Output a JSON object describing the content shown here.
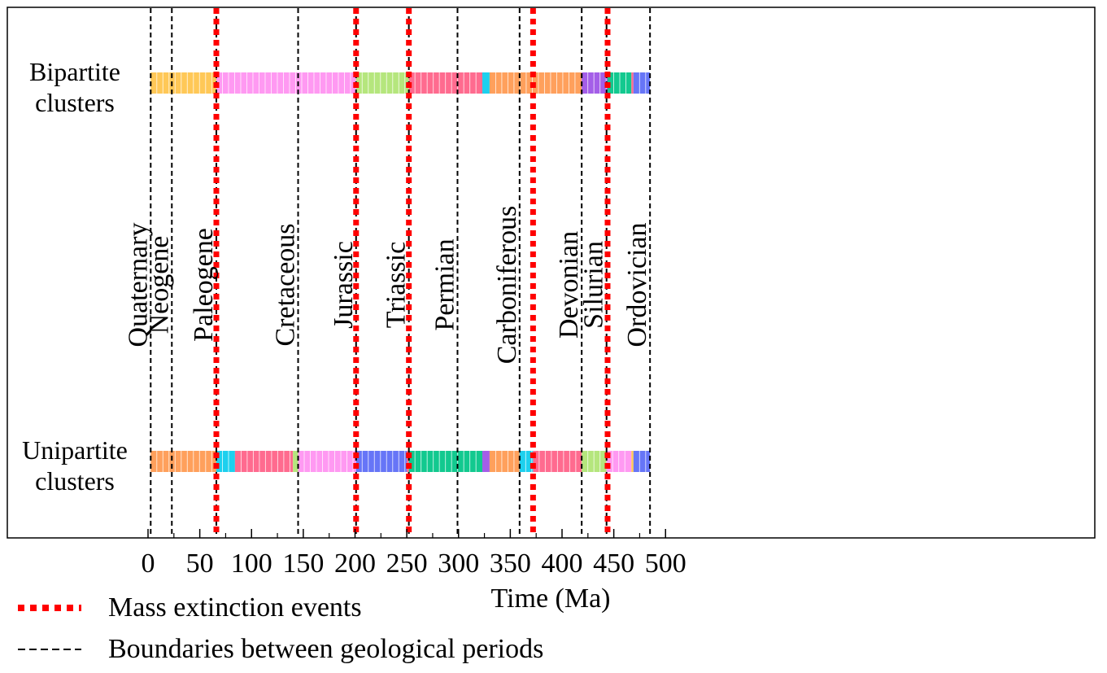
{
  "chart_data": {
    "type": "timeline",
    "xlabel": "Time (Ma)",
    "xlim": [
      0,
      500
    ],
    "xticks": [
      0,
      50,
      100,
      150,
      200,
      250,
      300,
      350,
      400,
      450,
      500
    ],
    "grid": false,
    "legend_position": "bottom-left",
    "rows": [
      {
        "label_line1": "Bipartite",
        "label_line2": "clusters",
        "segments": [
          {
            "start": 2.58,
            "end": 66,
            "color": "#FFC857"
          },
          {
            "start": 66,
            "end": 201,
            "color": "#FF99F2"
          },
          {
            "start": 201,
            "end": 252,
            "color": "#B5E67D"
          },
          {
            "start": 252,
            "end": 323,
            "color": "#FF6B8F"
          },
          {
            "start": 323,
            "end": 330,
            "color": "#1DD0EE"
          },
          {
            "start": 330,
            "end": 419,
            "color": "#FFA05C"
          },
          {
            "start": 419,
            "end": 444,
            "color": "#A45EE8"
          },
          {
            "start": 444,
            "end": 467,
            "color": "#12C98F"
          },
          {
            "start": 467,
            "end": 469,
            "color": "#FF6B8F"
          },
          {
            "start": 469,
            "end": 485,
            "color": "#6675F7"
          }
        ]
      },
      {
        "label_line1": "Unipartite",
        "label_line2": "clusters",
        "segments": [
          {
            "start": 2.58,
            "end": 66,
            "color": "#FFA05C"
          },
          {
            "start": 66,
            "end": 84,
            "color": "#1DD0EE"
          },
          {
            "start": 84,
            "end": 140,
            "color": "#FF6B8F"
          },
          {
            "start": 140,
            "end": 145,
            "color": "#B5E67D"
          },
          {
            "start": 145,
            "end": 201,
            "color": "#FF99F2"
          },
          {
            "start": 201,
            "end": 250,
            "color": "#6675F7"
          },
          {
            "start": 250,
            "end": 252,
            "color": "#FF6B8F"
          },
          {
            "start": 252,
            "end": 323,
            "color": "#12C98F"
          },
          {
            "start": 323,
            "end": 330,
            "color": "#A45EE8"
          },
          {
            "start": 330,
            "end": 359,
            "color": "#FFA05C"
          },
          {
            "start": 359,
            "end": 372,
            "color": "#1DD0EE"
          },
          {
            "start": 372,
            "end": 419,
            "color": "#FF6B8F"
          },
          {
            "start": 419,
            "end": 443,
            "color": "#B5E67D"
          },
          {
            "start": 443,
            "end": 467,
            "color": "#FF99F2"
          },
          {
            "start": 467,
            "end": 469,
            "color": "#FFC857"
          },
          {
            "start": 469,
            "end": 485,
            "color": "#6675F7"
          }
        ]
      }
    ],
    "period_boundaries": [
      2.58,
      23,
      66,
      145,
      201,
      252,
      299,
      359,
      419,
      443,
      485
    ],
    "mass_extinctions": [
      66,
      201,
      252,
      372,
      444
    ],
    "periods": [
      {
        "name": "Quaternary",
        "at": 2.58
      },
      {
        "name": "Neogene",
        "at": 23
      },
      {
        "name": "Paleogene",
        "at": 66
      },
      {
        "name": "Cretaceous",
        "at": 145
      },
      {
        "name": "Jurassic",
        "at": 201
      },
      {
        "name": "Triassic",
        "at": 252
      },
      {
        "name": "Permian",
        "at": 299
      },
      {
        "name": "Carboniferous",
        "at": 359
      },
      {
        "name": "Devonian",
        "at": 419
      },
      {
        "name": "Silurian",
        "at": 443
      },
      {
        "name": "Ordovician",
        "at": 485
      }
    ],
    "legend": [
      {
        "label": "Mass extinction events",
        "style": "red-dotted",
        "color": "#FF0000"
      },
      {
        "label": "Boundaries between geological periods",
        "style": "black-dashed",
        "color": "#000000"
      }
    ]
  }
}
